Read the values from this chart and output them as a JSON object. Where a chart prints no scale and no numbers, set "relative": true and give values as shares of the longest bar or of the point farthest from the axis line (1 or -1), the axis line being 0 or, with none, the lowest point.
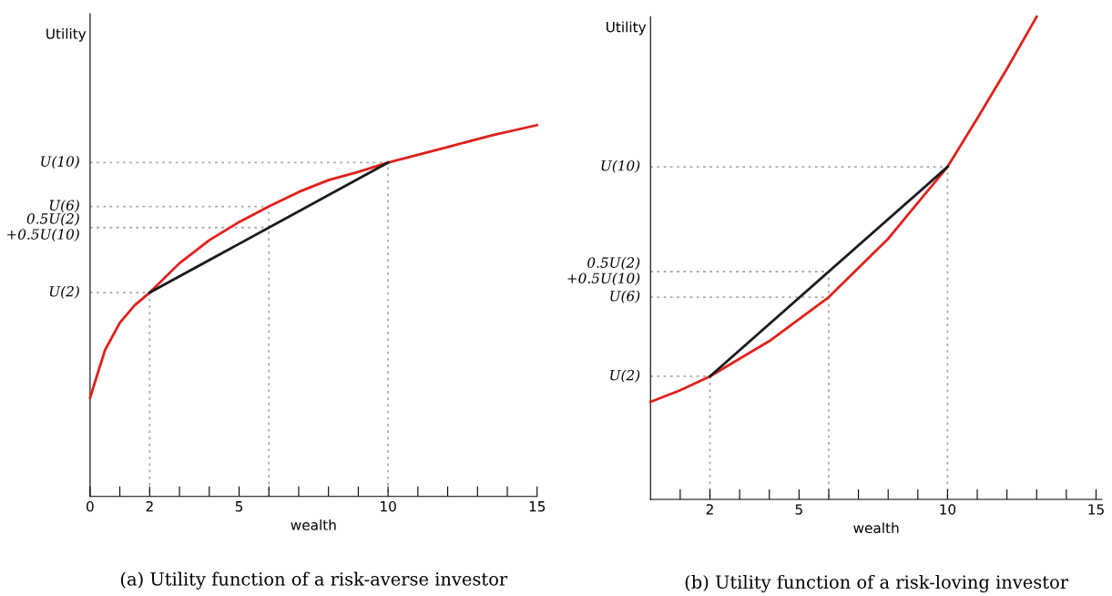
{
  "chart_data": [
    {
      "type": "line",
      "title": "(a) Utility function of a risk-averse investor",
      "xlabel": "wealth",
      "ylabel": "Utility",
      "relative": true,
      "xlim": [
        0,
        15
      ],
      "xticks": [
        0,
        {
          "value": 1,
          "label": null
        },
        2,
        {
          "value": 3,
          "label": null
        },
        {
          "value": 4,
          "label": null
        },
        5,
        {
          "value": 6,
          "label": null
        },
        {
          "value": 7,
          "label": null
        },
        {
          "value": 8,
          "label": null
        },
        {
          "value": 9,
          "label": null
        },
        10,
        {
          "value": 11,
          "label": null
        },
        {
          "value": 12,
          "label": null
        },
        {
          "value": 13,
          "label": null
        },
        {
          "value": 14,
          "label": null
        },
        15
      ],
      "grid": false,
      "series": [
        {
          "color": "#e0201b",
          "x": [
            0,
            0.5,
            1,
            1.5,
            2,
            3,
            4,
            5,
            6,
            7,
            8,
            9,
            10,
            12,
            13.5,
            15
          ],
          "values": [
            0.266,
            0.394,
            0.468,
            0.515,
            0.549,
            0.628,
            0.69,
            0.739,
            0.781,
            0.82,
            0.852,
            0.874,
            0.899,
            0.941,
            0.973,
            1
          ]
        },
        {
          "color": "#1a1a1a",
          "x": [
            2,
            10
          ],
          "values": [
            0.549,
            0.899
          ]
        },
        {
          "name": "U(2)",
          "color": "#aaaaaa",
          "line_style": "dotted",
          "x": [
            0,
            2,
            2
          ],
          "values": [
            0.549,
            0.549,
            0
          ]
        },
        {
          "name": "U(10)",
          "color": "#aaaaaa",
          "line_style": "dotted",
          "x": [
            0,
            10,
            10
          ],
          "values": [
            0.899,
            0.899,
            0
          ]
        },
        {
          "name": "U(6)",
          "color": "#aaaaaa",
          "line_style": "dotted",
          "x": [
            0,
            6,
            6
          ],
          "values": [
            0.781,
            0.781,
            0
          ]
        },
        {
          "name": "0.5U(2)\n+0.5U(10)",
          "color": "#aaaaaa",
          "line_style": "dotted",
          "x": [
            0,
            6
          ],
          "values": [
            0.724,
            0.724
          ]
        }
      ]
    },
    {
      "type": "line",
      "title": "(b) Utility function of a risk-loving investor",
      "xlabel": "wealth",
      "ylabel": "Utility",
      "relative": true,
      "xlim": [
        0,
        15.2
      ],
      "xticks": [
        {
          "value": 1,
          "label": null
        },
        2,
        {
          "value": 3,
          "label": null
        },
        {
          "value": 4,
          "label": null
        },
        5,
        {
          "value": 6,
          "label": null
        },
        {
          "value": 7,
          "label": null
        },
        {
          "value": 8,
          "label": null
        },
        {
          "value": 9,
          "label": null
        },
        10,
        {
          "value": 11,
          "label": null
        },
        {
          "value": 12,
          "label": null
        },
        {
          "value": 13,
          "label": null
        },
        {
          "value": 14,
          "label": null
        },
        15
      ],
      "grid": false,
      "series": [
        {
          "color": "#e0201b",
          "x": [
            0,
            1,
            2,
            4,
            6,
            8,
            10,
            11,
            12,
            13
          ],
          "values": [
            0.202,
            0.226,
            0.255,
            0.328,
            0.419,
            0.54,
            0.689,
            0.789,
            0.892,
            1
          ]
        },
        {
          "color": "#1a1a1a",
          "x": [
            2,
            10
          ],
          "values": [
            0.255,
            0.689
          ]
        },
        {
          "name": "U(2)",
          "color": "#aaaaaa",
          "line_style": "dotted",
          "x": [
            0,
            2,
            2
          ],
          "values": [
            0.255,
            0.255,
            0
          ]
        },
        {
          "name": "U(10)",
          "color": "#aaaaaa",
          "line_style": "dotted",
          "x": [
            0,
            10,
            10
          ],
          "values": [
            0.689,
            0.689,
            0
          ]
        },
        {
          "name": "0.5U(2)\n+0.5U(10)",
          "color": "#aaaaaa",
          "line_style": "dotted",
          "x": [
            0,
            6,
            6
          ],
          "values": [
            0.472,
            0.472,
            0
          ]
        },
        {
          "name": "U(6)",
          "color": "#aaaaaa",
          "line_style": "dotted",
          "x": [
            0,
            6
          ],
          "values": [
            0.419,
            0.419
          ]
        }
      ]
    }
  ]
}
